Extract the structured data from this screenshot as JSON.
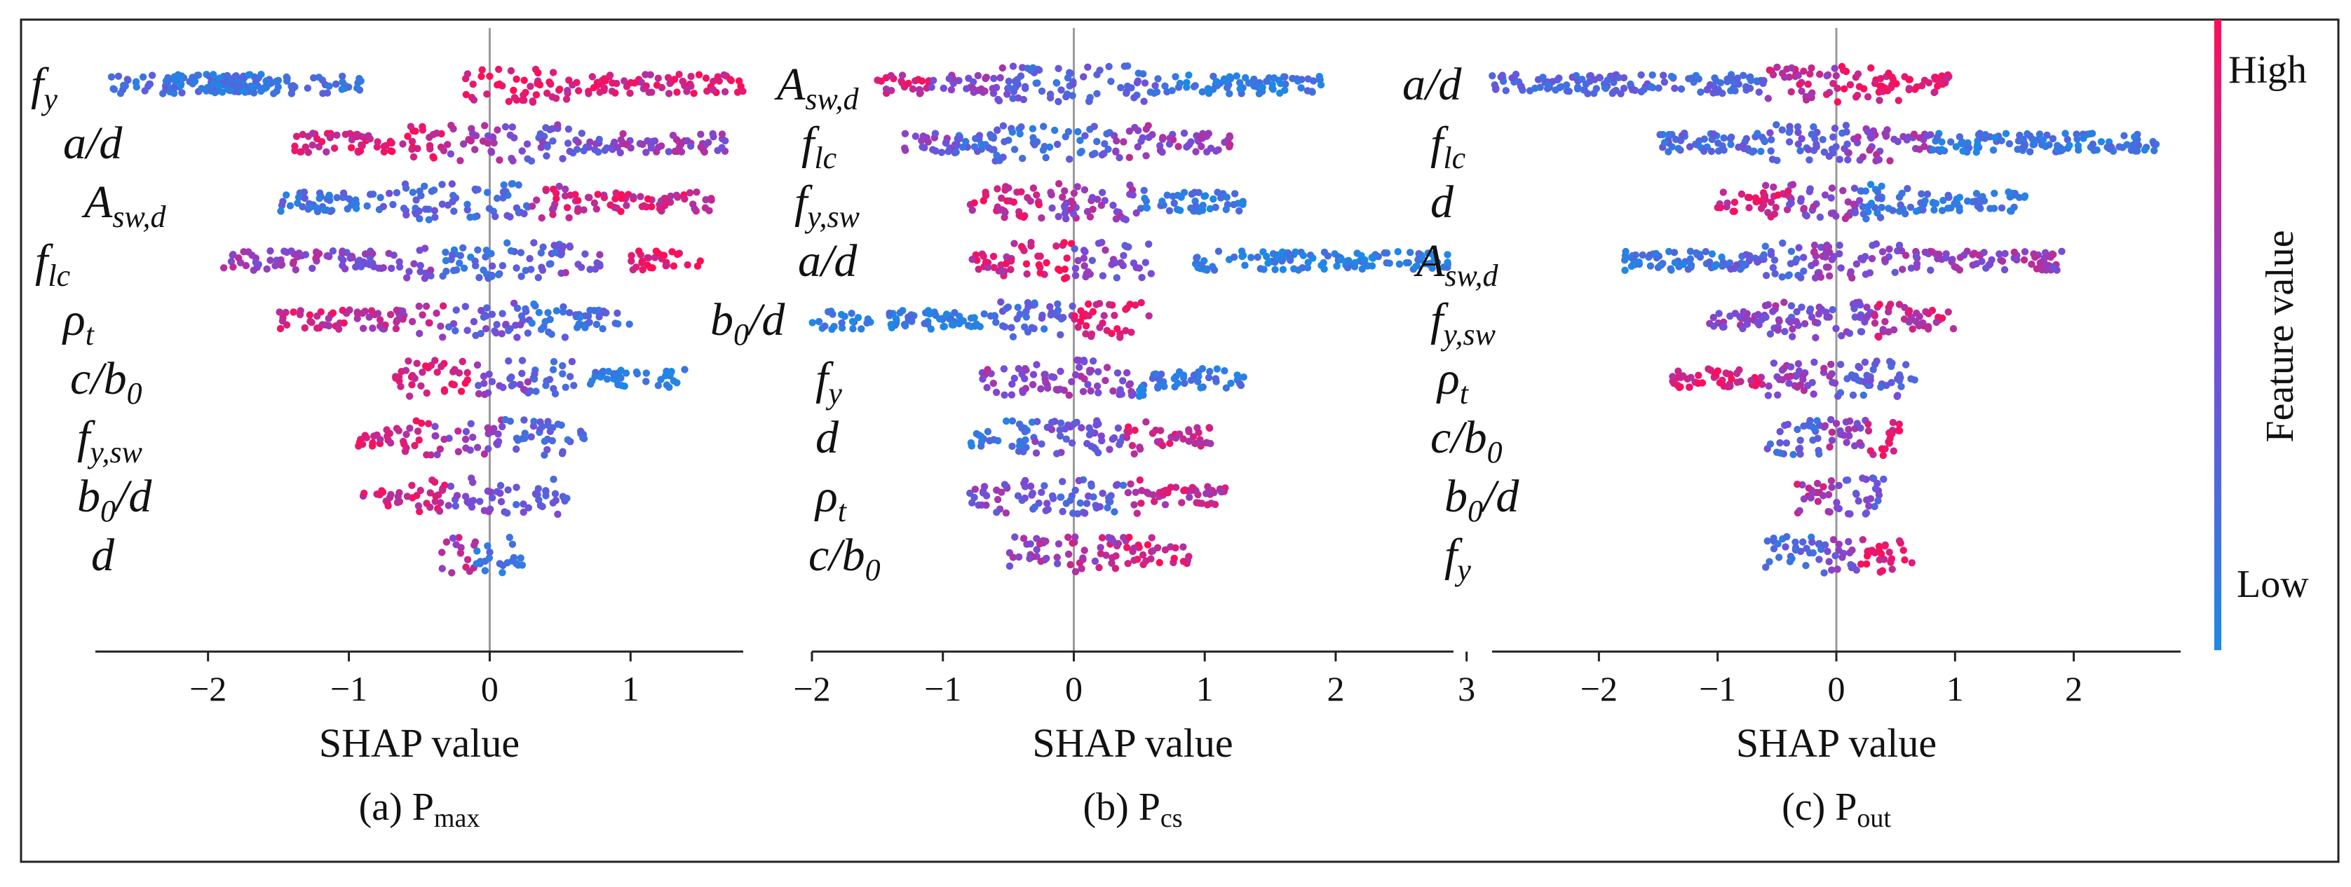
{
  "figure": {
    "colorbar": {
      "high_label": "High",
      "low_label": "Low",
      "title": "Feature value",
      "color_high": "#ff0d57",
      "color_low": "#1e88e5"
    }
  },
  "chart_data": [
    {
      "type": "scatter",
      "subtype": "shap_beeswarm",
      "xlabel": "SHAP value",
      "caption": {
        "prefix": "(a) P",
        "sub": "max"
      },
      "xlim": [
        -2.8,
        1.8
      ],
      "xticks": [
        -2,
        -1,
        0,
        1
      ],
      "tick_labels": [
        "−2",
        "−1",
        "0",
        "1"
      ],
      "features": [
        {
          "base": "f",
          "sub": "y",
          "points": [
            [
              -2.7,
              -2.4,
              0.2
            ],
            [
              -2.4,
              -1.5,
              0.18
            ],
            [
              -2.3,
              -1.2,
              0.15
            ],
            [
              -2.0,
              -1.7,
              0.15
            ],
            [
              -1.2,
              -0.9,
              0.2
            ],
            [
              -0.2,
              0.5,
              0.9
            ],
            [
              0.5,
              1.2,
              0.85
            ],
            [
              1.2,
              1.8,
              0.9
            ]
          ],
          "extents": [
            -2.7,
            1.8
          ]
        },
        {
          "base": "a/d",
          "sub": "",
          "points": [
            [
              -1.4,
              -0.9,
              0.8
            ],
            [
              -1.0,
              -0.3,
              0.9
            ],
            [
              -0.3,
              0.2,
              0.6
            ],
            [
              0.2,
              0.9,
              0.45
            ],
            [
              0.9,
              1.7,
              0.6
            ]
          ],
          "extents": [
            -1.4,
            1.75
          ]
        },
        {
          "base": "A",
          "sub": "sw,d",
          "points": [
            [
              -1.5,
              -0.8,
              0.2
            ],
            [
              -0.8,
              -0.2,
              0.3
            ],
            [
              -0.2,
              0.3,
              0.25
            ],
            [
              0.3,
              0.9,
              0.8
            ],
            [
              0.9,
              1.6,
              0.85
            ]
          ],
          "extents": [
            -1.5,
            1.55
          ]
        },
        {
          "base": "f",
          "sub": "lc",
          "points": [
            [
              -1.9,
              -1.2,
              0.6
            ],
            [
              -1.2,
              -0.4,
              0.5
            ],
            [
              -0.4,
              0.0,
              0.2
            ],
            [
              0.0,
              0.5,
              0.3
            ],
            [
              0.5,
              0.8,
              0.55
            ],
            [
              1.0,
              1.5,
              0.9
            ]
          ],
          "extents": [
            -1.9,
            1.5
          ]
        },
        {
          "base": "ρ",
          "sub": "t",
          "points": [
            [
              -1.5,
              -1.0,
              0.8
            ],
            [
              -1.0,
              -0.3,
              0.7
            ],
            [
              -0.3,
              0.3,
              0.4
            ],
            [
              0.3,
              1.0,
              0.2
            ]
          ],
          "extents": [
            -1.5,
            1.0
          ]
        },
        {
          "base": "c/b",
          "sub": "0",
          "points": [
            [
              -0.7,
              -0.1,
              0.9
            ],
            [
              -0.1,
              0.3,
              0.5
            ],
            [
              0.3,
              0.6,
              0.3
            ],
            [
              0.7,
              1.4,
              0.1
            ]
          ],
          "extents": [
            -0.7,
            1.4
          ]
        },
        {
          "base": "f",
          "sub": "y,sw",
          "points": [
            [
              -0.95,
              -0.4,
              0.85
            ],
            [
              -0.4,
              0.1,
              0.6
            ],
            [
              0.1,
              0.7,
              0.3
            ]
          ],
          "extents": [
            -0.95,
            0.7
          ]
        },
        {
          "base": "b",
          "sub": "0",
          "suffix": "/d",
          "points": [
            [
              -0.9,
              -0.3,
              0.85
            ],
            [
              -0.3,
              0.1,
              0.5
            ],
            [
              0.1,
              0.55,
              0.35
            ]
          ],
          "extents": [
            -0.9,
            0.55
          ]
        },
        {
          "base": "d",
          "sub": "",
          "points": [
            [
              -0.35,
              -0.1,
              0.7
            ],
            [
              -0.1,
              0.25,
              0.2
            ]
          ],
          "extents": [
            -0.35,
            0.25
          ]
        }
      ]
    },
    {
      "type": "scatter",
      "subtype": "shap_beeswarm",
      "xlabel": "SHAP value",
      "caption": {
        "prefix": "(b) P",
        "sub": "cs"
      },
      "xlim": [
        -2.0,
        2.9
      ],
      "xticks": [
        -2,
        -1,
        0,
        1,
        2,
        3
      ],
      "tick_labels": [
        "−2",
        "−1",
        "0",
        "1",
        "2",
        "3"
      ],
      "features": [
        {
          "base": "A",
          "sub": "sw,d",
          "points": [
            [
              -1.5,
              -1.1,
              0.8
            ],
            [
              -1.1,
              -0.5,
              0.55
            ],
            [
              -0.5,
              0.7,
              0.3
            ],
            [
              0.7,
              1.9,
              0.1
            ]
          ],
          "extents": [
            -1.5,
            1.9
          ]
        },
        {
          "base": "f",
          "sub": "lc",
          "points": [
            [
              -1.3,
              -0.9,
              0.5
            ],
            [
              -0.9,
              0.3,
              0.25
            ],
            [
              0.3,
              1.2,
              0.6
            ]
          ],
          "extents": [
            -1.3,
            1.25
          ]
        },
        {
          "base": "f",
          "sub": "y,sw",
          "points": [
            [
              -0.8,
              -0.2,
              0.85
            ],
            [
              -0.2,
              0.5,
              0.6
            ],
            [
              0.5,
              1.3,
              0.15
            ]
          ],
          "extents": [
            -0.8,
            1.3
          ]
        },
        {
          "base": "a/d",
          "sub": "",
          "points": [
            [
              -0.8,
              -0.4,
              0.8
            ],
            [
              -0.4,
              0.0,
              0.95
            ],
            [
              0.0,
              0.6,
              0.5
            ],
            [
              0.9,
              2.9,
              0.08
            ]
          ],
          "extents": [
            -0.8,
            2.9
          ]
        },
        {
          "base": "b",
          "sub": "0",
          "suffix": "/d",
          "points": [
            [
              -2.0,
              -0.7,
              0.1
            ],
            [
              -0.7,
              0.0,
              0.3
            ],
            [
              0.0,
              0.6,
              0.9
            ]
          ],
          "extents": [
            -2.0,
            0.6
          ]
        },
        {
          "base": "f",
          "sub": "y",
          "points": [
            [
              -0.7,
              -0.2,
              0.6
            ],
            [
              -0.2,
              0.5,
              0.55
            ],
            [
              0.5,
              1.3,
              0.15
            ]
          ],
          "extents": [
            -0.7,
            1.3
          ]
        },
        {
          "base": "d",
          "sub": "",
          "points": [
            [
              -0.8,
              -0.3,
              0.15
            ],
            [
              -0.3,
              0.4,
              0.45
            ],
            [
              0.4,
              1.05,
              0.8
            ]
          ],
          "extents": [
            -0.8,
            1.05
          ]
        },
        {
          "base": "ρ",
          "sub": "t",
          "points": [
            [
              -0.8,
              -0.3,
              0.5
            ],
            [
              -0.3,
              0.4,
              0.35
            ],
            [
              0.4,
              1.2,
              0.75
            ]
          ],
          "extents": [
            -0.8,
            1.2
          ]
        },
        {
          "base": "c/b",
          "sub": "0",
          "points": [
            [
              -0.5,
              -0.1,
              0.6
            ],
            [
              -0.1,
              0.4,
              0.7
            ],
            [
              0.4,
              0.9,
              0.85
            ]
          ],
          "extents": [
            -0.5,
            0.9
          ]
        }
      ]
    },
    {
      "type": "scatter",
      "subtype": "shap_beeswarm",
      "xlabel": "SHAP value",
      "caption": {
        "prefix": "(c) P",
        "sub": "out"
      },
      "xlim": [
        -2.9,
        2.9
      ],
      "xticks": [
        -2,
        -1,
        0,
        1,
        2
      ],
      "tick_labels": [
        "−2",
        "−1",
        "0",
        "1",
        "2"
      ],
      "features": [
        {
          "base": "a/d",
          "sub": "",
          "points": [
            [
              -2.9,
              -1.4,
              0.3
            ],
            [
              -1.4,
              -0.6,
              0.25
            ],
            [
              -0.6,
              0.0,
              0.75
            ],
            [
              0.0,
              0.95,
              0.92
            ]
          ],
          "extents": [
            -2.9,
            0.95
          ]
        },
        {
          "base": "f",
          "sub": "lc",
          "points": [
            [
              -1.5,
              -0.6,
              0.25
            ],
            [
              -0.6,
              0.1,
              0.35
            ],
            [
              0.1,
              0.8,
              0.6
            ],
            [
              0.8,
              2.7,
              0.15
            ]
          ],
          "extents": [
            -1.5,
            2.65
          ]
        },
        {
          "base": "d",
          "sub": "",
          "points": [
            [
              -1.0,
              -0.4,
              0.85
            ],
            [
              -0.4,
              0.2,
              0.55
            ],
            [
              0.2,
              1.6,
              0.15
            ]
          ],
          "extents": [
            -1.0,
            1.6
          ]
        },
        {
          "base": "A",
          "sub": "sw,d",
          "points": [
            [
              -1.8,
              -0.9,
              0.15
            ],
            [
              -0.9,
              -0.2,
              0.3
            ],
            [
              -0.2,
              0.9,
              0.55
            ],
            [
              0.9,
              1.9,
              0.6
            ]
          ],
          "extents": [
            -1.8,
            1.9
          ]
        },
        {
          "base": "f",
          "sub": "y,sw",
          "points": [
            [
              -1.1,
              -0.4,
              0.55
            ],
            [
              -0.4,
              0.3,
              0.5
            ],
            [
              0.3,
              1.0,
              0.8
            ]
          ],
          "extents": [
            -1.1,
            1.0
          ]
        },
        {
          "base": "ρ",
          "sub": "t",
          "points": [
            [
              -1.4,
              -0.6,
              0.85
            ],
            [
              -0.6,
              0.0,
              0.6
            ],
            [
              0.0,
              0.7,
              0.35
            ]
          ],
          "extents": [
            -1.4,
            0.7
          ]
        },
        {
          "base": "c/b",
          "sub": "0",
          "points": [
            [
              -0.6,
              -0.1,
              0.3
            ],
            [
              -0.1,
              0.25,
              0.6
            ],
            [
              0.25,
              0.55,
              0.85
            ]
          ],
          "extents": [
            -0.6,
            0.55
          ]
        },
        {
          "base": "b",
          "sub": "0",
          "suffix": "/d",
          "points": [
            [
              -0.35,
              0.0,
              0.7
            ],
            [
              0.0,
              0.45,
              0.4
            ]
          ],
          "extents": [
            -0.35,
            0.45
          ]
        },
        {
          "base": "f",
          "sub": "y",
          "points": [
            [
              -0.6,
              -0.1,
              0.25
            ],
            [
              -0.1,
              0.2,
              0.5
            ],
            [
              0.2,
              0.65,
              0.85
            ]
          ],
          "extents": [
            -0.6,
            0.65
          ]
        }
      ]
    }
  ]
}
